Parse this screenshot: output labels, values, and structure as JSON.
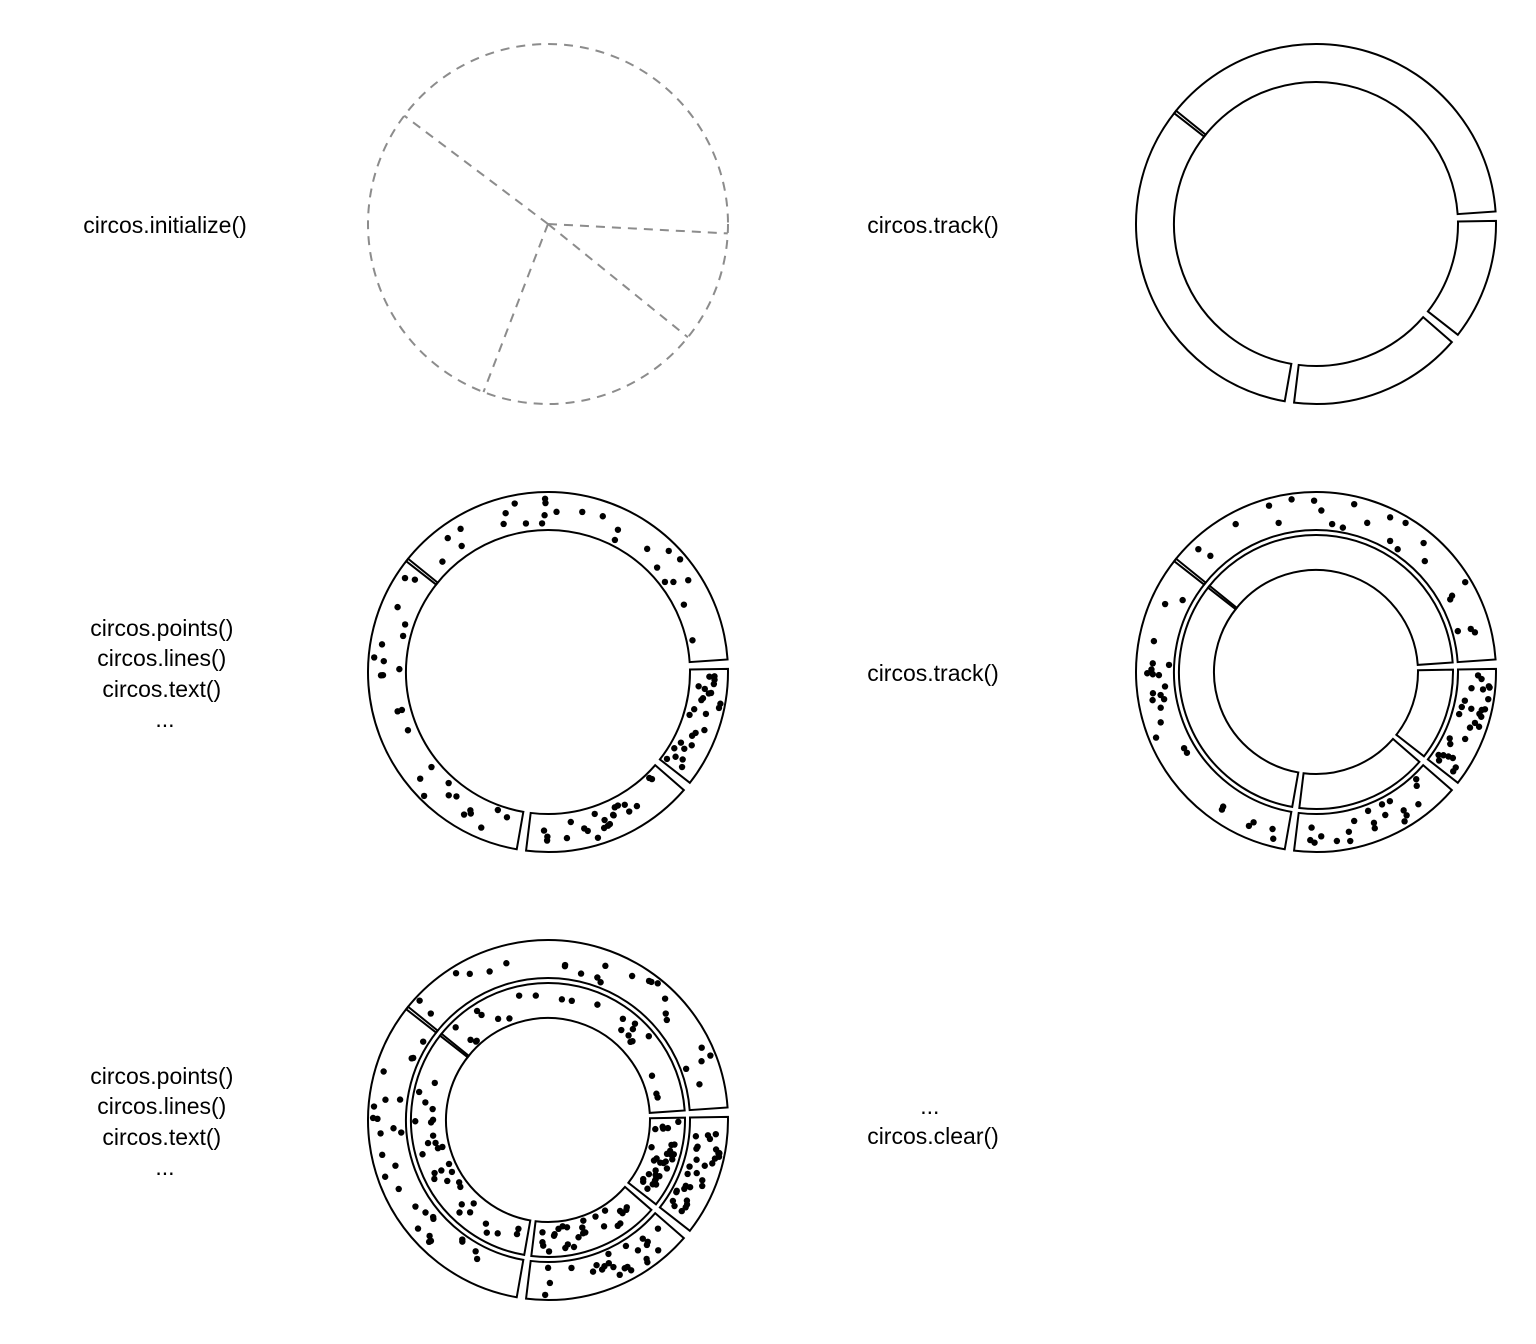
{
  "colors": {
    "ink": "#000000",
    "guide": "#8c8c8c",
    "background": "#ffffff"
  },
  "steps": [
    {
      "id": "step-initialize",
      "label_lines": [
        "circos.initialize()"
      ]
    },
    {
      "id": "step-track-1",
      "label_lines": [
        "circos.track()"
      ]
    },
    {
      "id": "step-plot-1",
      "label_lines": [
        "circos.points()",
        "circos.lines()",
        "circos.text()",
        "..."
      ]
    },
    {
      "id": "step-track-2",
      "label_lines": [
        "circos.track()"
      ]
    },
    {
      "id": "step-plot-2",
      "label_lines": [
        "circos.points()",
        "circos.lines()",
        "circos.text()",
        "..."
      ]
    },
    {
      "id": "step-clear",
      "label_lines": [
        "...",
        "circos.clear()"
      ]
    }
  ],
  "sectors": {
    "count": 4,
    "gap_degrees": 3
  }
}
